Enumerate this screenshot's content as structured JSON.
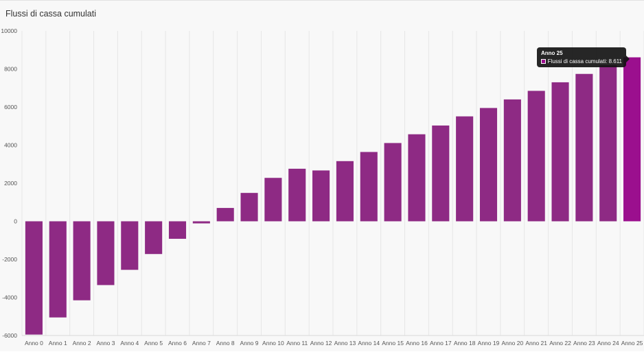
{
  "chart_data": {
    "type": "bar",
    "title": "Flussi di cassa cumulati",
    "categories": [
      "Anno 0",
      "Anno 1",
      "Anno 2",
      "Anno 3",
      "Anno 4",
      "Anno 5",
      "Anno 6",
      "Anno 7",
      "Anno 8",
      "Anno 9",
      "Anno 10",
      "Anno 11",
      "Anno 12",
      "Anno 13",
      "Anno 14",
      "Anno 15",
      "Anno 16",
      "Anno 17",
      "Anno 18",
      "Anno 19",
      "Anno 20",
      "Anno 21",
      "Anno 22",
      "Anno 23",
      "Anno 24",
      "Anno 25"
    ],
    "series": [
      {
        "name": "Flussi di cassa cumulati",
        "values": [
          -5950,
          -5050,
          -4150,
          -3350,
          -2550,
          -1720,
          -920,
          -110,
          700,
          1490,
          2280,
          2760,
          2670,
          3160,
          3640,
          4110,
          4570,
          5030,
          5510,
          5950,
          6400,
          6850,
          7300,
          7740,
          8200,
          8611
        ]
      }
    ],
    "ylim": [
      -6000,
      10000
    ],
    "yticks": [
      "10000",
      "8000",
      "6000",
      "4000",
      "2000",
      "0",
      "-2000",
      "-4000",
      "-6000"
    ],
    "grid": true,
    "bar_color": "#8e2a84",
    "highlight_color": "#9b0f8e",
    "highlighted_index": 25
  },
  "tooltip": {
    "title": "Anno 25",
    "text": "Flussi di cassa cumulati: 8.611"
  }
}
